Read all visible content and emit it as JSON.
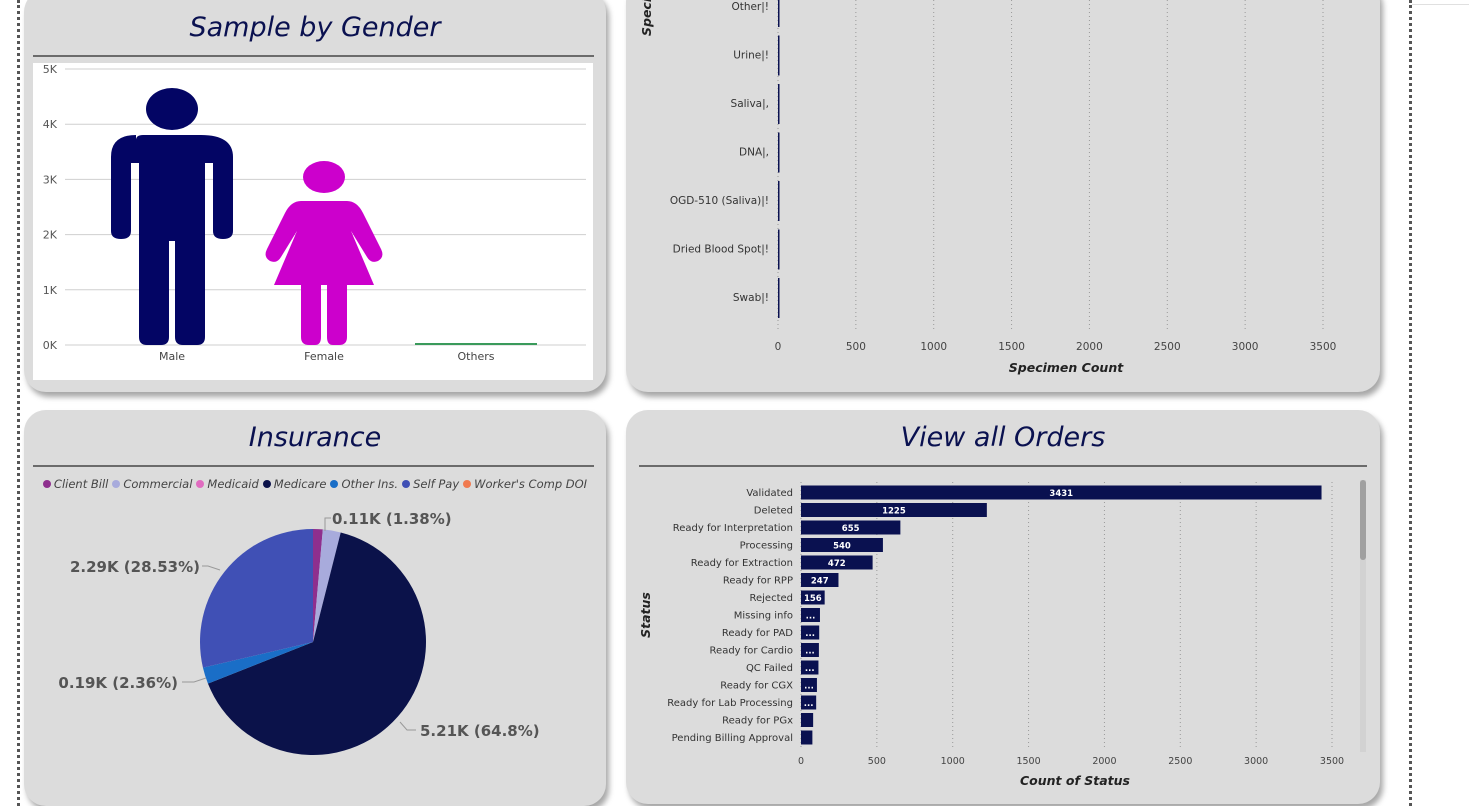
{
  "gender_card": {
    "title": "Sample by Gender",
    "chart_data": {
      "type": "bar",
      "categories": [
        "Male",
        "Female",
        "Others"
      ],
      "values": [
        4600,
        3300,
        0
      ],
      "y_ticks": [
        "0K",
        "1K",
        "2K",
        "3K",
        "4K",
        "5K"
      ],
      "ylim": [
        0,
        5000
      ],
      "colors": {
        "male": "#030564",
        "female": "#cc00cc",
        "others": "#3a9a5b"
      },
      "grid": true
    }
  },
  "specimen_card": {
    "chart_data": {
      "type": "bar",
      "orientation": "horizontal",
      "categories": [
        "Other|!",
        "Urine|!",
        "Saliva|,",
        "DNA|,",
        "OGD-510 (Saliva)|!",
        "Dried Blood Spot|!",
        "Swab|!"
      ],
      "values": [
        0,
        0,
        0,
        0,
        0,
        0,
        0
      ],
      "x_ticks": [
        "0",
        "500",
        "1000",
        "1500",
        "2000",
        "2500",
        "3000",
        "3500"
      ],
      "xlim": [
        0,
        3500
      ],
      "xlabel": "Specimen Count",
      "ylabel": "Speci",
      "bar_color": "#0a1150"
    }
  },
  "insurance_card": {
    "title": "Insurance",
    "legend": [
      {
        "label": "Client Bill",
        "color": "#8e2f8e"
      },
      {
        "label": "Commercial",
        "color": "#a8abdc"
      },
      {
        "label": "Medicaid",
        "color": "#e06cc0"
      },
      {
        "label": "Medicare",
        "color": "#0b124a"
      },
      {
        "label": "Other Ins.",
        "color": "#1a6ec7"
      },
      {
        "label": "Self Pay",
        "color": "#4050b5"
      },
      {
        "label": "Worker's Comp DOI",
        "color": "#f07a50"
      }
    ],
    "chart_data": {
      "type": "pie",
      "slices": [
        {
          "name": "Client Bill",
          "value": 1.38,
          "color": "#8e2f8e"
        },
        {
          "name": "Commercial",
          "value": 2.55,
          "color": "#a8abdc"
        },
        {
          "name": "Medicare",
          "value": 64.8,
          "color": "#0b124a"
        },
        {
          "name": "Other Ins.",
          "value": 2.36,
          "color": "#1a6ec7"
        },
        {
          "name": "Self Pay",
          "value": 28.53,
          "color": "#4050b5"
        }
      ],
      "labels": {
        "top": "0.11K (1.38%)",
        "right": "5.21K (64.8%)",
        "left_lower": "0.19K (2.36%)",
        "left_upper": "2.29K (28.53%)"
      }
    }
  },
  "orders_card": {
    "title": "View all Orders",
    "chart_data": {
      "type": "bar",
      "orientation": "horizontal",
      "categories": [
        "Validated",
        "Deleted",
        "Ready for Interpretation",
        "Processing",
        "Ready for Extraction",
        "Ready for RPP",
        "Rejected",
        "Missing info",
        "Ready for PAD",
        "Ready for Cardio",
        "QC Failed",
        "Ready for CGX",
        "Ready for Lab Processing",
        "Ready for PGx",
        "Pending Billing Approval"
      ],
      "values": [
        3431,
        1225,
        655,
        540,
        472,
        247,
        156,
        125,
        120,
        118,
        115,
        105,
        100,
        80,
        75
      ],
      "data_labels": [
        "3431",
        "1225",
        "655",
        "540",
        "472",
        "247",
        "156",
        "...",
        "...",
        "...",
        "...",
        "...",
        "...",
        "",
        ""
      ],
      "x_ticks": [
        "0",
        "500",
        "1000",
        "1500",
        "2000",
        "2500",
        "3000",
        "3500"
      ],
      "xlim": [
        0,
        3500
      ],
      "xlabel": "Count of Status",
      "ylabel": "Status",
      "bar_color": "#0a1150"
    }
  }
}
